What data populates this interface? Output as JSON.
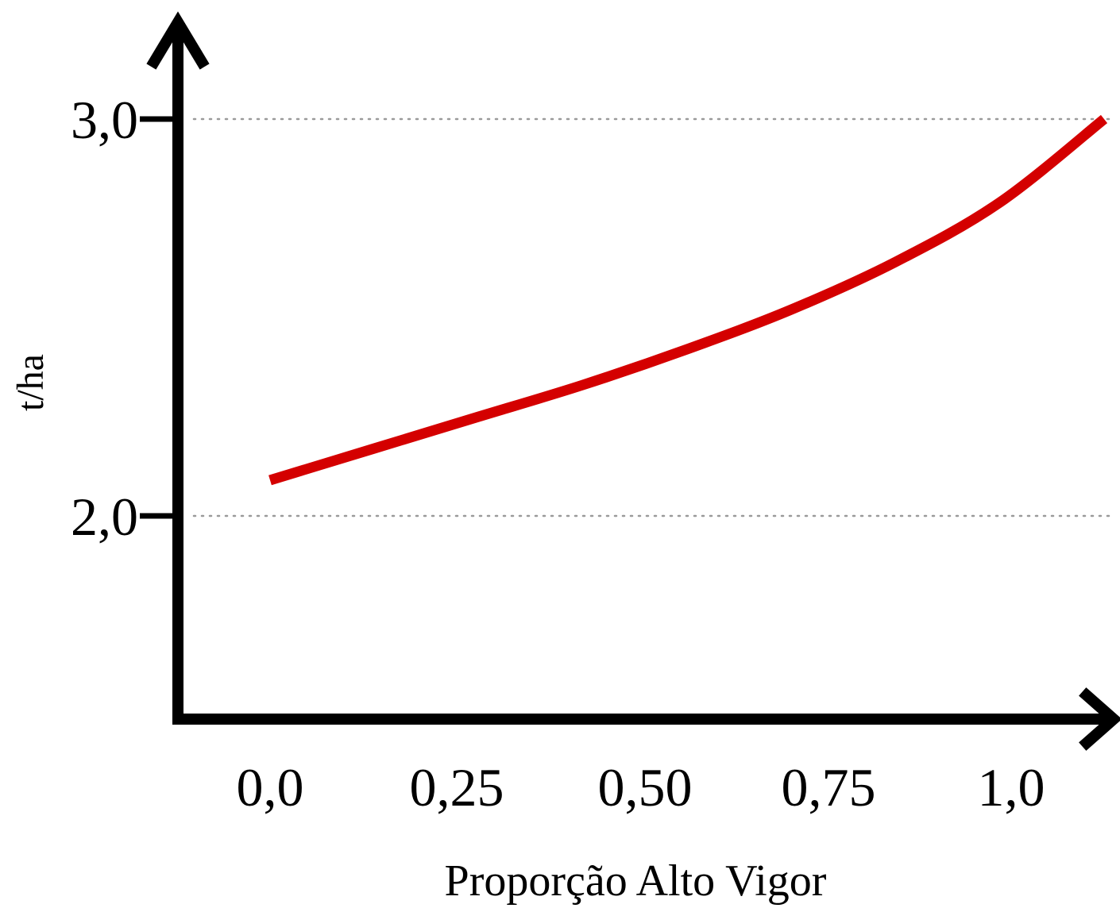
{
  "chart_data": {
    "type": "line",
    "title": "",
    "xlabel": "Proporção Alto Vigor",
    "ylabel": "t/ha",
    "x_ticks": [
      "0,0",
      "0,25",
      "0,50",
      "0,75",
      "1,0"
    ],
    "x_tick_values": [
      0,
      0.25,
      0.5,
      0.75,
      1.0
    ],
    "y_ticks": [
      "2,0",
      "3,0"
    ],
    "y_tick_values": [
      2.0,
      3.0
    ],
    "xlim": [
      0,
      1.0
    ],
    "ylim": [
      1.48,
      3.3
    ],
    "grid": "horizontal dotted at y ticks",
    "legend": "none",
    "series": [
      {
        "color": "#d40000",
        "x": [
          0,
          0.125,
          0.25,
          0.375,
          0.5,
          0.625,
          0.75,
          0.875,
          1.0
        ],
        "y": [
          2.09,
          2.17,
          2.25,
          2.33,
          2.42,
          2.52,
          2.64,
          2.79,
          3.0
        ]
      }
    ]
  }
}
